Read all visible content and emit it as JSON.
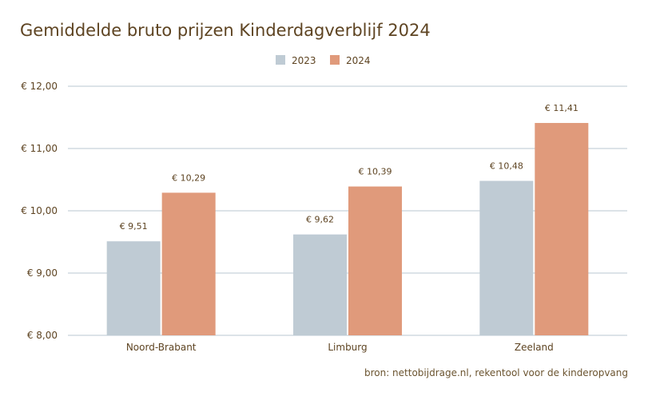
{
  "chart_data": {
    "type": "bar",
    "title": "Gemiddelde bruto prijzen Kinderdagverblijf 2024",
    "categories": [
      "Noord-Brabant",
      "Limburg",
      "Zeeland"
    ],
    "series": [
      {
        "name": "2023",
        "color": "#bfcbd4",
        "values": [
          9.51,
          9.62,
          10.48
        ],
        "labels": [
          "€ 9,51",
          "€ 9,62",
          "€ 10,48"
        ]
      },
      {
        "name": "2024",
        "color": "#e09a7b",
        "values": [
          10.29,
          10.39,
          11.41
        ],
        "labels": [
          "€ 10,29",
          "€ 10,39",
          "€ 11,41"
        ]
      }
    ],
    "ylim": [
      8,
      12
    ],
    "yticks": [
      8,
      9,
      10,
      11,
      12
    ],
    "ytick_labels": [
      "€ 8,00",
      "€ 9,00",
      "€ 10,00",
      "€ 11,00",
      "€ 12,00"
    ],
    "xlabel": "",
    "ylabel": "",
    "grid": true,
    "legend_position": "top-center",
    "source": "bron: nettobijdrage.nl, rekentool voor de kinderopvang"
  }
}
